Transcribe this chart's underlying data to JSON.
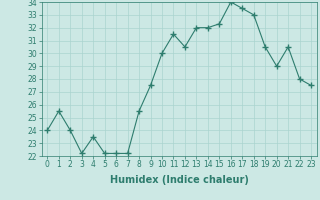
{
  "x": [
    0,
    1,
    2,
    3,
    4,
    5,
    6,
    7,
    8,
    9,
    10,
    11,
    12,
    13,
    14,
    15,
    16,
    17,
    18,
    19,
    20,
    21,
    22,
    23
  ],
  "y": [
    24,
    25.5,
    24,
    22.2,
    23.5,
    22.2,
    22.2,
    22.2,
    25.5,
    27.5,
    30,
    31.5,
    30.5,
    32,
    32,
    32.3,
    34,
    33.5,
    33,
    30.5,
    29,
    30.5,
    28,
    27.5
  ],
  "line_color": "#2e7d6e",
  "marker": "+",
  "bg_color": "#cce8e4",
  "grid_color": "#aad4cf",
  "xlabel": "Humidex (Indice chaleur)",
  "ylim": [
    22,
    34
  ],
  "xlim": [
    -0.5,
    23.5
  ],
  "yticks": [
    22,
    23,
    24,
    25,
    26,
    27,
    28,
    29,
    30,
    31,
    32,
    33,
    34
  ],
  "xticks": [
    0,
    1,
    2,
    3,
    4,
    5,
    6,
    7,
    8,
    9,
    10,
    11,
    12,
    13,
    14,
    15,
    16,
    17,
    18,
    19,
    20,
    21,
    22,
    23
  ],
  "tick_label_fontsize": 5.5,
  "xlabel_fontsize": 7.0,
  "marker_size": 4,
  "linewidth": 0.8
}
